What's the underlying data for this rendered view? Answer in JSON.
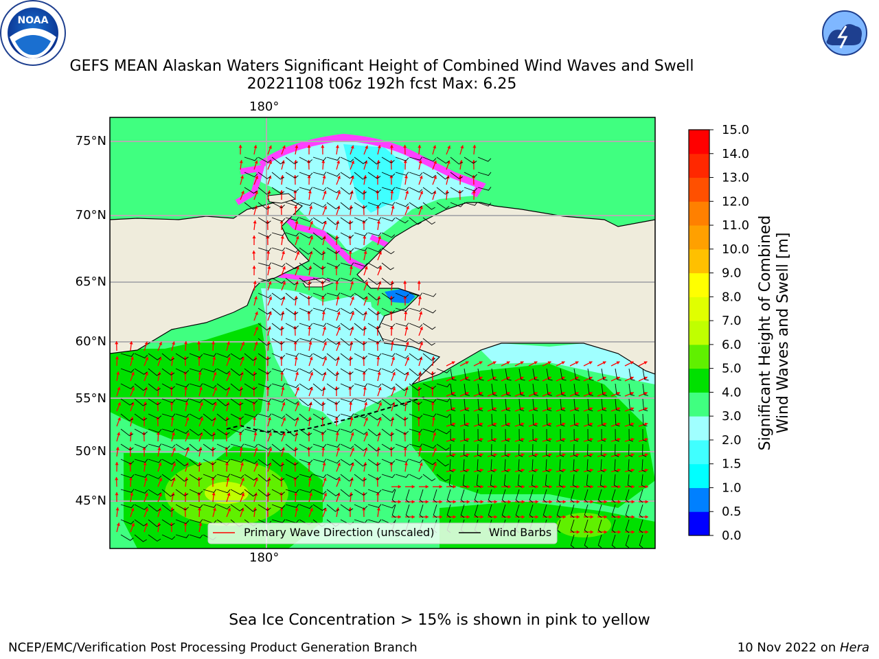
{
  "header": {
    "title_line1": "GEFS MEAN Alaskan Waters Significant Height of Combined Wind Waves and Swell",
    "title_line2": "20221108 t06z 192h fcst   Max: 6.25"
  },
  "logos": {
    "left": {
      "name": "NOAA",
      "ring_text": "NATIONAL OCEANIC AND ATMOSPHERIC ADMINISTRATION · U.S. DEPARTMENT OF COMMERCE"
    },
    "right": {
      "name": "NATIONAL WEATHER SERVICE"
    }
  },
  "map": {
    "lat_labels": [
      "75°N",
      "70°N",
      "65°N",
      "60°N",
      "55°N",
      "50°N",
      "45°N"
    ],
    "lon_label_top": "180°",
    "lon_label_bottom": "180°",
    "legend": {
      "primary_wave": "Primary Wave Direction (unscaled)",
      "wind_barbs": "Wind Barbs"
    },
    "arrow_color": "#ff0000",
    "land_color": "#efecdc"
  },
  "colorbar": {
    "label_line1": "Significant Height of Combined",
    "label_line2": "Wind Waves and Swell [m]",
    "ticks": [
      "0.0",
      "0.5",
      "1.0",
      "1.5",
      "2.0",
      "3.0",
      "4.0",
      "5.0",
      "6.0",
      "7.0",
      "8.0",
      "9.0",
      "10.0",
      "11.0",
      "12.0",
      "13.0",
      "14.0",
      "15.0"
    ],
    "colors": [
      "#0000ff",
      "#0080ff",
      "#00ffff",
      "#40ffff",
      "#a0ffff",
      "#40ff80",
      "#00e000",
      "#60f000",
      "#c0ff00",
      "#e0ff00",
      "#ffff00",
      "#ffc000",
      "#ffa000",
      "#ff8000",
      "#ff5000",
      "#ff2800",
      "#ff0000"
    ]
  },
  "notes": {
    "sea_ice": "Sea Ice Concentration > 15% is shown in pink to yellow"
  },
  "footer": {
    "left": "NCEP/EMC/Verification Post Processing Product Generation Branch",
    "right_prefix": "10 Nov 2022 on ",
    "right_host": "Hera"
  }
}
